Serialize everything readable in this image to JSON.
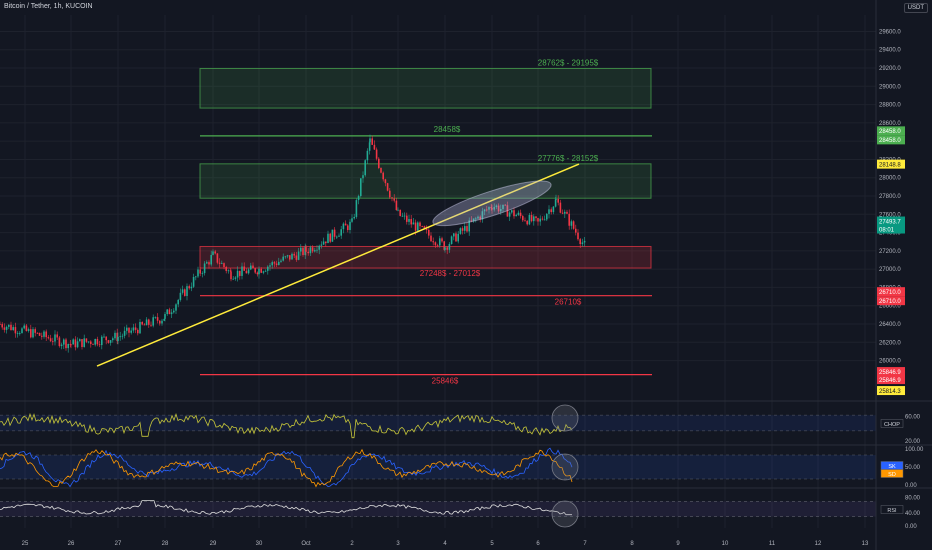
{
  "header": {
    "symbol_title": "Bitcoin / Tether, 1h, KUCOIN",
    "currency_button": "USDT"
  },
  "chart_data": [
    {
      "type": "candlestick",
      "title": "Bitcoin / Tether, 1h, KUCOIN",
      "y_axis_ticks": [
        26000,
        26200,
        26400,
        26600,
        26800,
        27000,
        27200,
        27400,
        27600,
        27800,
        28000,
        28200,
        28400,
        28600,
        28800,
        29000,
        29200,
        29400,
        29600
      ],
      "ylim": [
        25700,
        29780
      ],
      "x_axis_ticks": [
        "25",
        "26",
        "27",
        "28",
        "29",
        "30",
        "Oct",
        "2",
        "3",
        "4",
        "5",
        "6",
        "7",
        "8",
        "9",
        "10",
        "11",
        "12",
        "13"
      ],
      "candle_colors": {
        "up": "#22ab94",
        "down": "#f23645"
      },
      "price_path": [
        {
          "date": "25",
          "price": 26400
        },
        {
          "date": "26",
          "price": 26180
        },
        {
          "date": "27",
          "price": 26260
        },
        {
          "date": "28",
          "price": 26480
        },
        {
          "date": "29",
          "price": 27150
        },
        {
          "date": "29",
          "price": 26950
        },
        {
          "date": "30",
          "price": 27000
        },
        {
          "date": "Oct",
          "price": 27200
        },
        {
          "date": "2",
          "price": 27500
        },
        {
          "date": "2",
          "price": 28400
        },
        {
          "date": "3",
          "price": 27600
        },
        {
          "date": "4",
          "price": 27250
        },
        {
          "date": "5",
          "price": 27700
        },
        {
          "date": "6",
          "price": 27500
        },
        {
          "date": "6",
          "price": 27750
        },
        {
          "date": "7",
          "price": 27250
        }
      ],
      "annotations": {
        "zones": [
          {
            "label": "28762$ - 29195$",
            "low": 28762,
            "high": 29195,
            "color": "#4caf50"
          },
          {
            "label": "27776$ - 28152$",
            "low": 27776,
            "high": 28152,
            "color": "#4caf50"
          },
          {
            "label": "27248$ - 27012$",
            "low": 27012,
            "high": 27248,
            "color": "#f23645"
          }
        ],
        "levels": [
          {
            "label": "28458$",
            "price": 28458,
            "color": "#4caf50"
          },
          {
            "label": "26710$",
            "price": 26710,
            "color": "#f23645"
          },
          {
            "label": "25846$",
            "price": 25846,
            "color": "#f23645"
          }
        ],
        "trendline": {
          "from": {
            "date": "26",
            "price": 25940
          },
          "to": {
            "date": "7",
            "price": 28150
          },
          "color": "#ffeb3b"
        }
      },
      "price_tags": [
        {
          "label": "28458.0",
          "bg": "#4caf50"
        },
        {
          "label": "28458.0",
          "bg": "#4caf50"
        },
        {
          "label": "28148.8",
          "bg": "#ffeb3b"
        },
        {
          "label": "27493.7",
          "bg": "#089981"
        },
        {
          "label": "08:01",
          "bg": "#089981"
        },
        {
          "label": "26710.0",
          "bg": "#f23645"
        },
        {
          "label": "26710.0",
          "bg": "#f23645"
        },
        {
          "label": "25846.9",
          "bg": "#f23645"
        },
        {
          "label": "25846.9",
          "bg": "#f23645"
        },
        {
          "label": "25814.3",
          "bg": "#ffeb3b"
        }
      ]
    },
    {
      "type": "line",
      "indicator": "CHOP",
      "y_ticks": [
        "60.00",
        "20.00"
      ],
      "legend_tag": "CHOP",
      "color": "#c6c63a",
      "ylim": [
        20,
        80
      ],
      "band": [
        38.2,
        61.8
      ]
    },
    {
      "type": "line",
      "indicator": "Stochastic RSI",
      "y_ticks": [
        "100.00",
        "50.00",
        "0.00"
      ],
      "legend_tags": [
        "SK",
        "SD"
      ],
      "series": [
        {
          "name": "SK",
          "color": "#2962ff"
        },
        {
          "name": "SD",
          "color": "#ff9800"
        }
      ],
      "ylim": [
        0,
        100
      ],
      "band": [
        20,
        80
      ]
    },
    {
      "type": "line",
      "indicator": "RSI",
      "y_ticks": [
        "80.00",
        "40.00",
        "0.00"
      ],
      "legend_tag": "RSI",
      "color": "#e0e0e0",
      "ylim": [
        0,
        100
      ],
      "band": [
        30,
        70
      ]
    }
  ]
}
